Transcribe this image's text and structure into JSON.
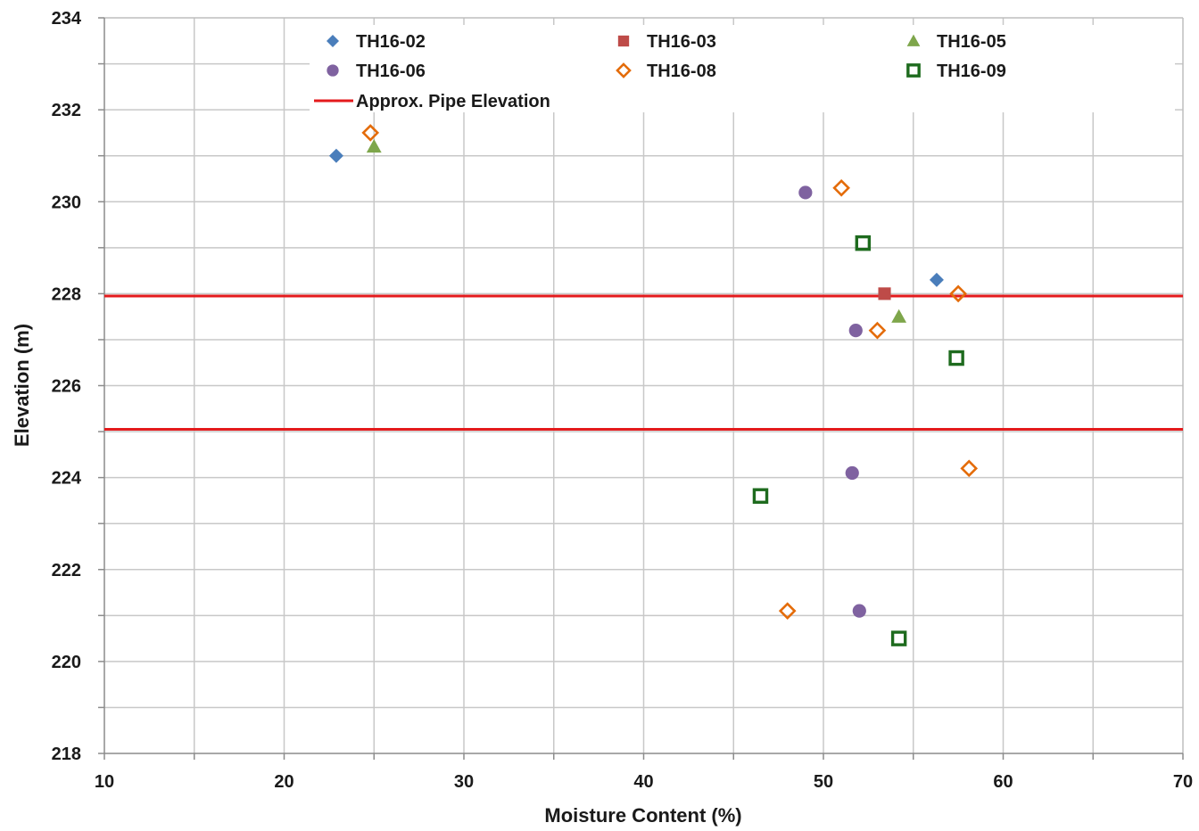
{
  "chart_data": {
    "type": "scatter",
    "xlabel": "Moisture Content (%)",
    "ylabel": "Elevation (m)",
    "xlim": [
      10,
      70
    ],
    "ylim": [
      218,
      234
    ],
    "xticks": [
      "10",
      "20",
      "30",
      "40",
      "50",
      "60",
      "70"
    ],
    "yticks": [
      "218",
      "220",
      "222",
      "224",
      "226",
      "228",
      "230",
      "232",
      "234"
    ],
    "grid": true,
    "legend_position": "top",
    "series": [
      {
        "name": "TH16-02",
        "marker": "diamond",
        "filled": true,
        "color": "#4a7ebb",
        "points": [
          [
            22.9,
            231.0
          ],
          [
            56.3,
            228.3
          ]
        ]
      },
      {
        "name": "TH16-03",
        "marker": "square",
        "filled": true,
        "color": "#be4b48",
        "points": [
          [
            53.4,
            228.0
          ]
        ]
      },
      {
        "name": "TH16-05",
        "marker": "triangle",
        "filled": true,
        "color": "#7ea64b",
        "points": [
          [
            25.0,
            231.2
          ],
          [
            54.2,
            227.5
          ]
        ]
      },
      {
        "name": "TH16-06",
        "marker": "circle",
        "filled": true,
        "color": "#7f62a0",
        "points": [
          [
            49.0,
            230.2
          ],
          [
            51.8,
            227.2
          ],
          [
            51.6,
            224.1
          ],
          [
            52.0,
            221.1
          ]
        ]
      },
      {
        "name": "TH16-08",
        "marker": "diamond",
        "filled": false,
        "color": "#e46c0a",
        "points": [
          [
            24.8,
            231.5
          ],
          [
            51.0,
            230.3
          ],
          [
            53.0,
            227.2
          ],
          [
            57.5,
            228.0
          ],
          [
            58.1,
            224.2
          ],
          [
            48.0,
            221.1
          ]
        ]
      },
      {
        "name": "TH16-09",
        "marker": "square",
        "filled": false,
        "color": "#1e6b1e",
        "points": [
          [
            52.2,
            229.1
          ],
          [
            57.4,
            226.6
          ],
          [
            46.5,
            223.6
          ],
          [
            54.2,
            220.5
          ]
        ]
      }
    ],
    "reference_lines": {
      "name": "Approx. Pipe Elevation",
      "color": "#e41a1c",
      "y_values": [
        227.95,
        225.05
      ]
    }
  }
}
